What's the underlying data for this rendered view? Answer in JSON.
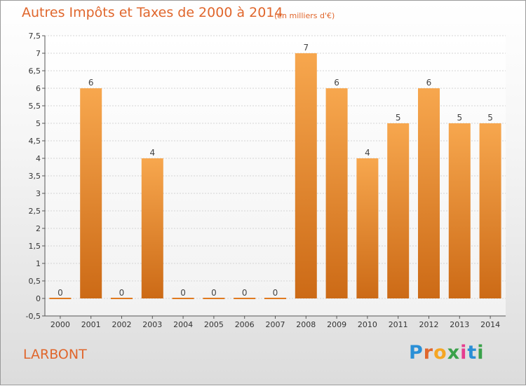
{
  "chart_data": {
    "type": "bar",
    "title": "Autres Impôts et Taxes de 2000 à 2014",
    "subtitle": "(en milliers d'€)",
    "categories": [
      "2000",
      "2001",
      "2002",
      "2003",
      "2004",
      "2005",
      "2006",
      "2007",
      "2008",
      "2009",
      "2010",
      "2011",
      "2012",
      "2013",
      "2014"
    ],
    "values": [
      0,
      6,
      0,
      4,
      0,
      0,
      0,
      0,
      7,
      6,
      4,
      5,
      6,
      5,
      5
    ],
    "data_labels": [
      "0",
      "6",
      "0",
      "4",
      "0",
      "0",
      "0",
      "0",
      "7",
      "6",
      "4",
      "5",
      "6",
      "5",
      "5"
    ],
    "ylim": [
      -0.5,
      7.5
    ],
    "yticks": [
      "-0,5",
      "0",
      "0,5",
      "1",
      "1,5",
      "2",
      "2,5",
      "3",
      "3,5",
      "4",
      "4,5",
      "5",
      "5,5",
      "6",
      "6,5",
      "7",
      "7,5"
    ],
    "grid": true,
    "bar_color": "#f08a2c"
  },
  "footer": {
    "commune": "LARBONT",
    "logo_letters": [
      "P",
      "r",
      "o",
      "x",
      "i",
      "t",
      "i"
    ],
    "logo_colors": [
      "#2a8fd6",
      "#e0662c",
      "#f5a623",
      "#3aa14a",
      "#e63d8f",
      "#2a8fd6",
      "#3aa14a"
    ]
  }
}
